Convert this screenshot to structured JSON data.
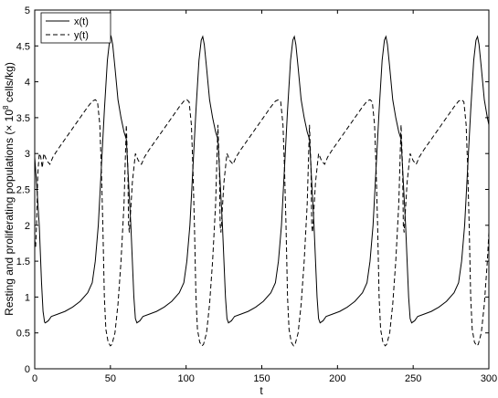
{
  "chart_data": {
    "type": "line",
    "xlabel": "t",
    "ylabel_main": "Resting and proliferating populations (× 10",
    "ylabel_exp": "8",
    "ylabel_unit": " cells/kg)",
    "xlim": [
      0,
      300
    ],
    "ylim": [
      0,
      5
    ],
    "xticks": [
      "0",
      "50",
      "100",
      "150",
      "200",
      "250",
      "300"
    ],
    "yticks": [
      "0",
      "0.5",
      "1",
      "1.5",
      "2",
      "2.5",
      "3",
      "3.5",
      "4",
      "4.5",
      "5"
    ],
    "grid": false,
    "legend_placement": "top-left",
    "period": 60.5,
    "series": [
      {
        "name": "x(t)",
        "style": "solid",
        "color": "#000000",
        "cycle": [
          [
            0,
            3.2
          ],
          [
            3,
            2.0
          ],
          [
            5,
            1.0
          ],
          [
            6,
            0.7
          ],
          [
            7,
            0.64
          ],
          [
            9,
            0.67
          ],
          [
            11,
            0.73
          ],
          [
            15,
            0.76
          ],
          [
            20,
            0.8
          ],
          [
            25,
            0.86
          ],
          [
            30,
            0.94
          ],
          [
            35,
            1.06
          ],
          [
            38,
            1.2
          ],
          [
            40,
            1.5
          ],
          [
            42,
            2.0
          ],
          [
            44,
            2.8
          ],
          [
            46,
            3.6
          ],
          [
            48,
            4.3
          ],
          [
            49.5,
            4.58
          ],
          [
            50.5,
            4.63
          ],
          [
            51.5,
            4.52
          ],
          [
            53,
            4.2
          ],
          [
            55,
            3.75
          ],
          [
            57,
            3.5
          ],
          [
            59,
            3.3
          ],
          [
            60.5,
            3.2
          ]
        ]
      },
      {
        "name": "y(t)",
        "style": "dashed",
        "color": "#000000",
        "cycle": [
          [
            0,
            3.4
          ],
          [
            1,
            2.8
          ],
          [
            1.5,
            2.0
          ],
          [
            2,
            1.9
          ],
          [
            4,
            2.6
          ],
          [
            6,
            3.0
          ],
          [
            8,
            2.9
          ],
          [
            10,
            2.85
          ],
          [
            12,
            2.95
          ],
          [
            15,
            3.05
          ],
          [
            20,
            3.2
          ],
          [
            25,
            3.35
          ],
          [
            30,
            3.5
          ],
          [
            35,
            3.65
          ],
          [
            38,
            3.73
          ],
          [
            40,
            3.75
          ],
          [
            41.5,
            3.72
          ],
          [
            43,
            3.4
          ],
          [
            44,
            2.8
          ],
          [
            45,
            2.0
          ],
          [
            46,
            1.0
          ],
          [
            47,
            0.55
          ],
          [
            48.5,
            0.37
          ],
          [
            50,
            0.32
          ],
          [
            51,
            0.34
          ],
          [
            53,
            0.5
          ],
          [
            55,
            0.9
          ],
          [
            57,
            1.5
          ],
          [
            59,
            2.3
          ],
          [
            60.5,
            3.4
          ]
        ]
      }
    ],
    "x_start_segment": [
      [
        0,
        2.95
      ],
      [
        1.5,
        2.5
      ],
      [
        3,
        2.0
      ],
      [
        4.5,
        1.2
      ],
      [
        5.5,
        0.8
      ],
      [
        6.5,
        0.65
      ]
    ],
    "y_start_segment": [
      [
        0,
        1.8
      ],
      [
        0.6,
        1.7
      ],
      [
        1.2,
        2.0
      ],
      [
        2,
        2.7
      ],
      [
        3,
        3.0
      ],
      [
        4,
        2.95
      ],
      [
        5,
        2.8
      ]
    ]
  }
}
